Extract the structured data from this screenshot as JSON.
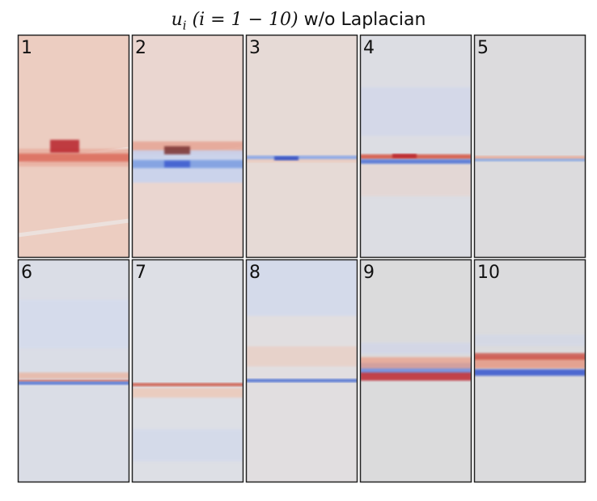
{
  "chart_data": {
    "type": "heatmap",
    "title": "u_i (i = 1 − 10) w/o Laplacian",
    "title_parts": {
      "var": "u",
      "sub": "i",
      "range": "(i = 1 − 10)",
      "suffix": "w/o Laplacian"
    },
    "colormap": "coolwarm",
    "layout": {
      "rows": 2,
      "cols": 5
    },
    "panels": [
      {
        "label": "1"
      },
      {
        "label": "2"
      },
      {
        "label": "3"
      },
      {
        "label": "4"
      },
      {
        "label": "5"
      },
      {
        "label": "6"
      },
      {
        "label": "7"
      },
      {
        "label": "8"
      },
      {
        "label": "9"
      },
      {
        "label": "10"
      }
    ]
  }
}
